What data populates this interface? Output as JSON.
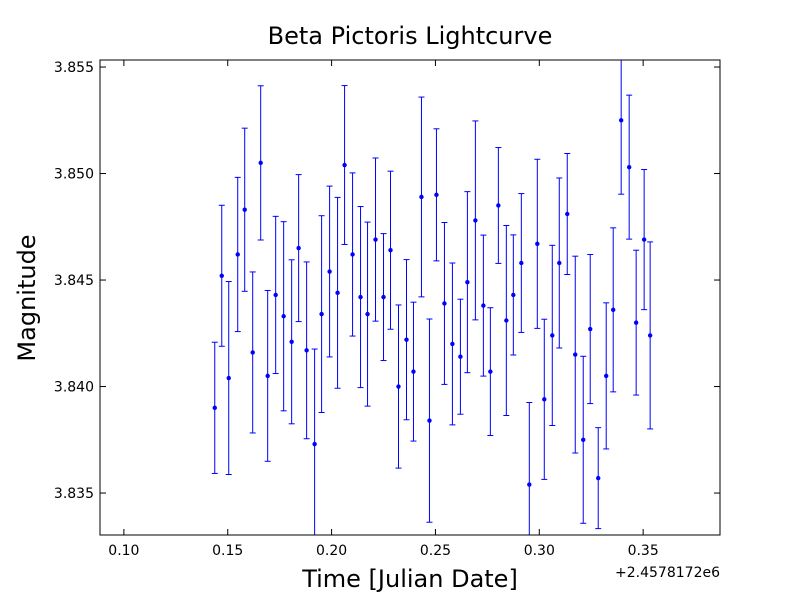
{
  "chart_data": {
    "type": "errorbar",
    "title": "Beta Pictoris Lightcurve",
    "x_label": "Time [Julian Date]",
    "y_label": "Magnitude",
    "x_offset_label": "+2.4578172e6",
    "color": "#0000ff",
    "x": [
      0.14375,
      0.14712,
      0.15048,
      0.15481,
      0.15817,
      0.16202,
      0.16587,
      0.16923,
      0.17308,
      0.17692,
      0.18077,
      0.18413,
      0.18798,
      0.19183,
      0.19519,
      0.19904,
      0.20288,
      0.20625,
      0.2101,
      0.21394,
      0.21731,
      0.22115,
      0.225,
      0.22837,
      0.23221,
      0.23606,
      0.23942,
      0.24327,
      0.24712,
      0.25048,
      0.25433,
      0.25817,
      0.26202,
      0.26538,
      0.26923,
      0.27308,
      0.27644,
      0.28029,
      0.28413,
      0.2875,
      0.29135,
      0.29519,
      0.29904,
      0.3024,
      0.30625,
      0.30962,
      0.31346,
      0.31731,
      0.32115,
      0.32452,
      0.32837,
      0.33221,
      0.33558,
      0.33942,
      0.34327,
      0.34663,
      0.35048,
      0.35337
    ],
    "values": [
      3.839,
      3.8452,
      3.8404,
      3.8462,
      3.8483,
      3.8416,
      3.8505,
      3.8405,
      3.8443,
      3.8433,
      3.8421,
      3.8465,
      3.8417,
      3.8373,
      3.8434,
      3.8454,
      3.8444,
      3.8504,
      3.8462,
      3.8442,
      3.8434,
      3.8469,
      3.8442,
      3.8464,
      3.84,
      3.8422,
      3.8407,
      3.8489,
      3.8384,
      3.849,
      3.8439,
      3.842,
      3.8414,
      3.8449,
      3.8478,
      3.8438,
      3.8407,
      3.8485,
      3.8431,
      3.8443,
      3.8458,
      3.8354,
      3.8467,
      3.8394,
      3.8424,
      3.8458,
      3.8481,
      3.8415,
      3.8375,
      3.8427,
      3.8357,
      3.8405,
      3.8436,
      3.8525,
      3.8503,
      3.843,
      3.8469,
      3.8424
    ],
    "errors": [
      0.00308,
      0.00331,
      0.00453,
      0.00362,
      0.00383,
      0.00378,
      0.00362,
      0.00401,
      0.00369,
      0.00444,
      0.00385,
      0.00345,
      0.00415,
      0.00446,
      0.00462,
      0.00401,
      0.00448,
      0.00373,
      0.00383,
      0.00425,
      0.00432,
      0.00383,
      0.00298,
      0.00371,
      0.00383,
      0.00376,
      0.00326,
      0.00469,
      0.00477,
      0.0031,
      0.0038,
      0.0038,
      0.0027,
      0.00425,
      0.00467,
      0.00331,
      0.003,
      0.00272,
      0.00446,
      0.00282,
      0.00326,
      0.00385,
      0.00397,
      0.00376,
      0.00423,
      0.00399,
      0.00284,
      0.00462,
      0.00392,
      0.0035,
      0.00237,
      0.00343,
      0.00385,
      0.00347,
      0.00338,
      0.0034,
      0.00329,
      0.00439
    ],
    "xlim": [
      0.0885,
      0.387
    ],
    "ylim": [
      3.83303,
      3.85533
    ],
    "xticks": [
      {
        "value": 0.1,
        "label": "0.10"
      },
      {
        "value": 0.15,
        "label": "0.15"
      },
      {
        "value": 0.2,
        "label": "0.20"
      },
      {
        "value": 0.25,
        "label": "0.25"
      },
      {
        "value": 0.3,
        "label": "0.30"
      },
      {
        "value": 0.35,
        "label": "0.35"
      }
    ],
    "yticks": [
      3.835,
      {
        "value": 3.84,
        "label": "3.840"
      },
      3.845,
      {
        "value": 3.85,
        "label": "3.850"
      },
      3.855
    ]
  }
}
